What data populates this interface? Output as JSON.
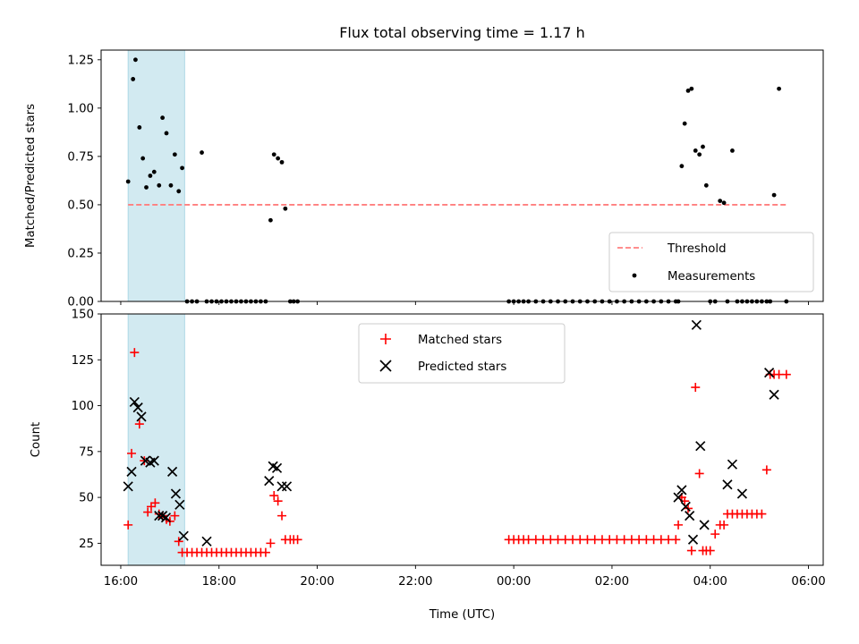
{
  "chart_data": [
    {
      "type": "scatter",
      "title": "Flux total observing time = 1.17 h",
      "xlabel": "",
      "ylabel": "Matched/Predicted stars",
      "ylim": [
        0,
        1.3
      ],
      "yticks": [
        "0.00",
        "0.25",
        "0.50",
        "0.75",
        "1.00",
        "1.25"
      ],
      "highlight_span": {
        "from": 16.15,
        "to": 17.3,
        "color": "#add8e6"
      },
      "threshold": {
        "name": "Threshold",
        "value": 0.5,
        "from": 16.15,
        "to": 29.55,
        "color": "#ff7f7f"
      },
      "series": [
        {
          "name": "Measurements",
          "color": "#000000",
          "x": [
            16.15,
            16.25,
            16.3,
            16.38,
            16.45,
            16.52,
            16.6,
            16.68,
            16.78,
            16.85,
            16.93,
            17.02,
            17.1,
            17.18,
            17.25,
            17.35,
            17.45,
            17.55,
            17.65,
            17.75,
            17.85,
            17.95,
            18.05,
            18.15,
            18.25,
            18.35,
            18.45,
            18.55,
            18.65,
            18.75,
            18.85,
            18.95,
            19.05,
            19.12,
            19.2,
            19.28,
            19.35,
            19.45,
            19.52,
            19.6,
            23.9,
            24.0,
            24.1,
            24.2,
            24.3,
            24.45,
            24.6,
            24.75,
            24.9,
            25.05,
            25.2,
            25.35,
            25.5,
            25.65,
            25.8,
            25.95,
            26.1,
            26.25,
            26.4,
            26.55,
            26.7,
            26.85,
            27.0,
            27.15,
            27.3,
            27.35,
            27.42,
            27.48,
            27.55,
            27.62,
            27.7,
            27.78,
            27.85,
            27.92,
            28.0,
            28.1,
            28.2,
            28.28,
            28.35,
            28.45,
            28.55,
            28.65,
            28.75,
            28.85,
            28.95,
            29.05,
            29.15,
            29.22,
            29.3,
            29.4,
            29.55
          ],
          "y": [
            0.62,
            1.15,
            1.25,
            0.9,
            0.74,
            0.59,
            0.65,
            0.67,
            0.6,
            0.95,
            0.87,
            0.6,
            0.76,
            0.57,
            0.69,
            0,
            0,
            0,
            0.77,
            0,
            0,
            0,
            0,
            0,
            0,
            0,
            0,
            0,
            0,
            0,
            0,
            0,
            0.42,
            0.76,
            0.74,
            0.72,
            0.48,
            0,
            0,
            0,
            0,
            0,
            0,
            0,
            0,
            0,
            0,
            0,
            0,
            0,
            0,
            0,
            0,
            0,
            0,
            0,
            0,
            0,
            0,
            0,
            0,
            0,
            0,
            0,
            0,
            0,
            0.7,
            0.92,
            1.09,
            1.1,
            0.78,
            0.76,
            0.8,
            0.6,
            0,
            0,
            0.52,
            0.51,
            0,
            0.78,
            0,
            0,
            0,
            0,
            0,
            0,
            0,
            0,
            0.55,
            1.1,
            0
          ]
        }
      ],
      "legend": {
        "position": "lower right",
        "entries": [
          "Threshold",
          "Measurements"
        ]
      }
    },
    {
      "type": "scatter",
      "title": "",
      "xlabel": "Time (UTC)",
      "ylabel": "Count",
      "ylim": [
        13,
        150
      ],
      "yticks": [
        "25",
        "50",
        "75",
        "100",
        "125",
        "150"
      ],
      "xlim": [
        15.6,
        30.3
      ],
      "xticks": [
        {
          "value": 16,
          "label": "16:00"
        },
        {
          "value": 18,
          "label": "18:00"
        },
        {
          "value": 20,
          "label": "20:00"
        },
        {
          "value": 22,
          "label": "22:00"
        },
        {
          "value": 24,
          "label": "00:00"
        },
        {
          "value": 26,
          "label": "02:00"
        },
        {
          "value": 28,
          "label": "04:00"
        },
        {
          "value": 30,
          "label": "06:00"
        }
      ],
      "highlight_span": {
        "from": 16.15,
        "to": 17.3,
        "color": "#add8e6"
      },
      "series": [
        {
          "name": "Matched stars",
          "marker": "plus",
          "color": "#ff0000",
          "x": [
            16.15,
            16.22,
            16.28,
            16.38,
            16.48,
            16.55,
            16.62,
            16.7,
            16.78,
            16.85,
            16.93,
            17.0,
            17.1,
            17.18,
            17.25,
            17.35,
            17.45,
            17.55,
            17.65,
            17.75,
            17.85,
            17.95,
            18.05,
            18.15,
            18.25,
            18.35,
            18.45,
            18.55,
            18.65,
            18.75,
            18.85,
            18.95,
            19.05,
            19.12,
            19.2,
            19.28,
            19.35,
            19.45,
            19.52,
            19.6,
            23.9,
            24.0,
            24.1,
            24.2,
            24.3,
            24.45,
            24.6,
            24.75,
            24.9,
            25.05,
            25.2,
            25.35,
            25.5,
            25.65,
            25.8,
            25.95,
            26.1,
            26.25,
            26.4,
            26.55,
            26.7,
            26.85,
            27.0,
            27.15,
            27.3,
            27.35,
            27.42,
            27.48,
            27.55,
            27.62,
            27.7,
            27.78,
            27.85,
            27.92,
            28.0,
            28.1,
            28.2,
            28.28,
            28.35,
            28.45,
            28.55,
            28.65,
            28.75,
            28.85,
            28.95,
            29.05,
            29.15,
            29.22,
            29.3,
            29.4,
            29.55
          ],
          "y": [
            35,
            74,
            129,
            90,
            70,
            42,
            45,
            47,
            41,
            40,
            38,
            37,
            40,
            26,
            20,
            20,
            20,
            20,
            20,
            20,
            20,
            20,
            20,
            20,
            20,
            20,
            20,
            20,
            20,
            20,
            20,
            20,
            25,
            51,
            48,
            40,
            27,
            27,
            27,
            27,
            27,
            27,
            27,
            27,
            27,
            27,
            27,
            27,
            27,
            27,
            27,
            27,
            27,
            27,
            27,
            27,
            27,
            27,
            27,
            27,
            27,
            27,
            27,
            27,
            27,
            35,
            50,
            48,
            44,
            21,
            110,
            63,
            21,
            21,
            21,
            30,
            35,
            35,
            41,
            41,
            41,
            41,
            41,
            41,
            41,
            41,
            65,
            117,
            117,
            117,
            117
          ]
        },
        {
          "name": "Predicted stars",
          "marker": "x",
          "color": "#000000",
          "x": [
            16.15,
            16.22,
            16.28,
            16.35,
            16.42,
            16.5,
            16.6,
            16.68,
            16.78,
            16.85,
            16.92,
            17.05,
            17.12,
            17.2,
            17.28,
            17.75,
            19.02,
            19.1,
            19.18,
            19.28,
            19.38,
            27.35,
            27.42,
            27.5,
            27.58,
            27.65,
            27.72,
            27.8,
            27.88,
            28.35,
            28.45,
            28.65,
            29.2,
            29.3
          ],
          "y": [
            56,
            64,
            102,
            99,
            94,
            70,
            69,
            70,
            40,
            40,
            39,
            64,
            52,
            46,
            29,
            26,
            59,
            67,
            66,
            56,
            56,
            50,
            54,
            45,
            40,
            27,
            144,
            78,
            35,
            57,
            68,
            52,
            118,
            106
          ]
        }
      ],
      "legend": {
        "position": "upper center",
        "entries": [
          "Matched stars",
          "Predicted stars"
        ]
      }
    }
  ]
}
